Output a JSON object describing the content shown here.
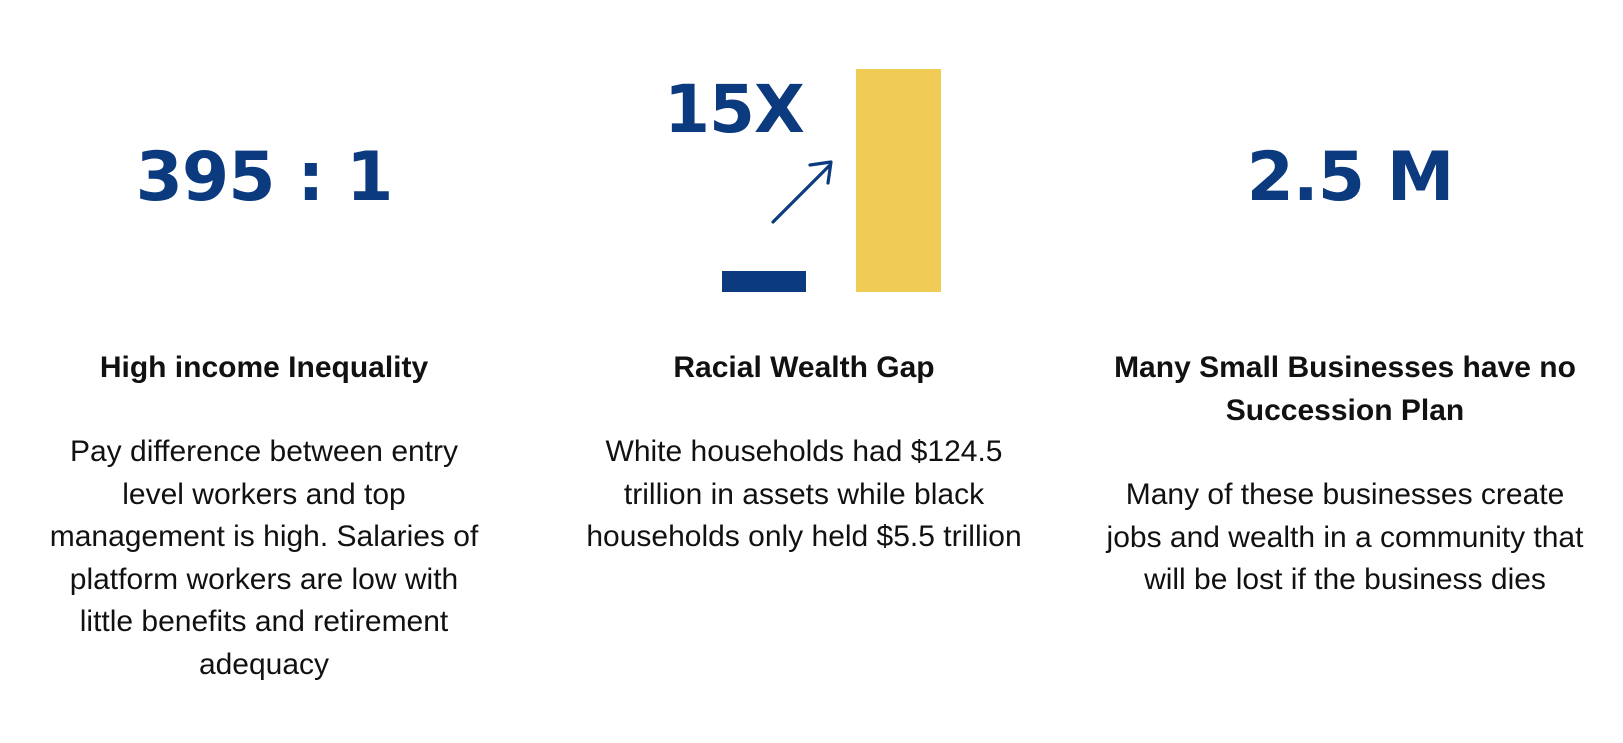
{
  "columns": [
    {
      "stat": "395 : 1",
      "heading": "High income Inequality",
      "body": "Pay difference between entry level workers and top management is high. Salaries of platform workers are low with little benefits and retirement adequacy"
    },
    {
      "stat": "15X",
      "heading": "Racial Wealth Gap",
      "body": "White households had $124.5 trillion in assets while black households only held $5.5 trillion"
    },
    {
      "stat": "2.5 M",
      "heading": "Many Small Businesses have no Succession Plan",
      "body": "Many of these businesses create jobs and wealth in a community that will be lost if the business dies"
    }
  ],
  "colors": {
    "stat": "#0b3a7e",
    "small_bar": "#0b3a7e",
    "large_bar": "#f0cb55",
    "text": "#111111"
  },
  "icons": {
    "growth_arrow": "arrow-up-right-icon"
  }
}
